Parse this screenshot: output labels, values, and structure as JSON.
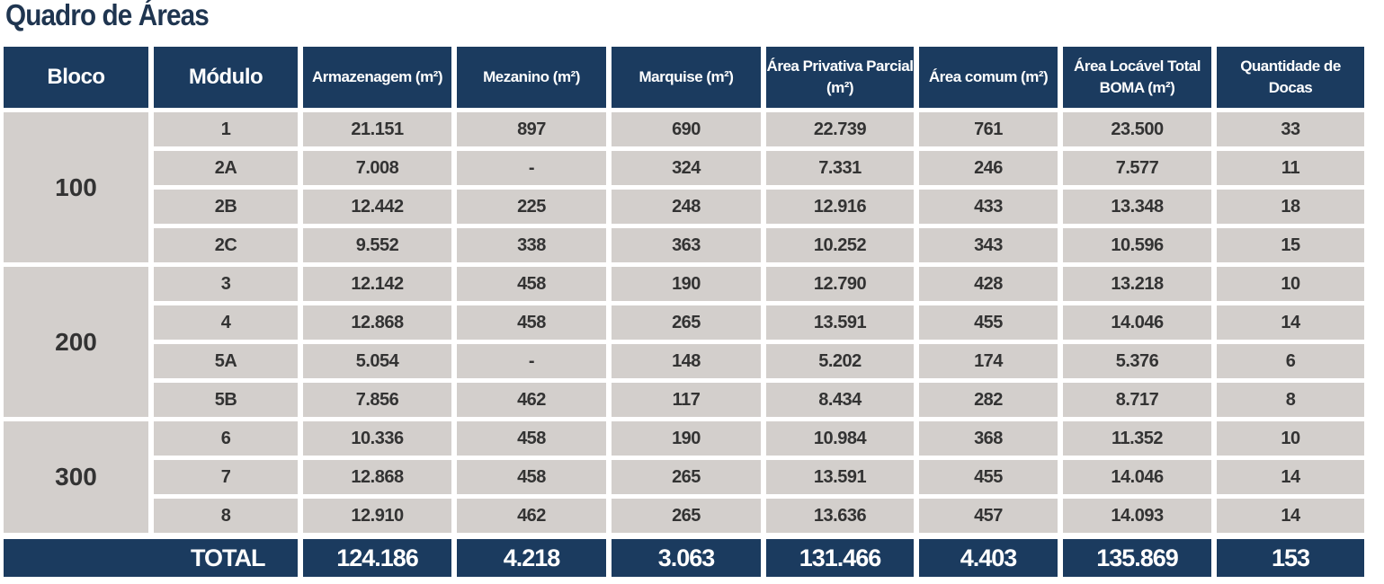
{
  "title": "Quadro de Áreas",
  "colors": {
    "header": "#1b3b5f",
    "cell": "#d3cfcc",
    "text": "#333333"
  },
  "headers": [
    "Bloco",
    "Módulo",
    "Armazenagem (m²)",
    "Mezanino (m²)",
    "Marquise (m²)",
    "Área Privativa Parcial (m²)",
    "Área comum (m²)",
    "Área Locável Total BOMA (m²)",
    "Quantidade de Docas"
  ],
  "blocks": [
    {
      "bloco": "100",
      "rows": [
        [
          "1",
          "21.151",
          "897",
          "690",
          "22.739",
          "761",
          "23.500",
          "33"
        ],
        [
          "2A",
          "7.008",
          "-",
          "324",
          "7.331",
          "246",
          "7.577",
          "11"
        ],
        [
          "2B",
          "12.442",
          "225",
          "248",
          "12.916",
          "433",
          "13.348",
          "18"
        ],
        [
          "2C",
          "9.552",
          "338",
          "363",
          "10.252",
          "343",
          "10.596",
          "15"
        ]
      ]
    },
    {
      "bloco": "200",
      "rows": [
        [
          "3",
          "12.142",
          "458",
          "190",
          "12.790",
          "428",
          "13.218",
          "10"
        ],
        [
          "4",
          "12.868",
          "458",
          "265",
          "13.591",
          "455",
          "14.046",
          "14"
        ],
        [
          "5A",
          "5.054",
          "-",
          "148",
          "5.202",
          "174",
          "5.376",
          "6"
        ],
        [
          "5B",
          "7.856",
          "462",
          "117",
          "8.434",
          "282",
          "8.717",
          "8"
        ]
      ]
    },
    {
      "bloco": "300",
      "rows": [
        [
          "6",
          "10.336",
          "458",
          "190",
          "10.984",
          "368",
          "11.352",
          "10"
        ],
        [
          "7",
          "12.868",
          "458",
          "265",
          "13.591",
          "455",
          "14.046",
          "14"
        ],
        [
          "8",
          "12.910",
          "462",
          "265",
          "13.636",
          "457",
          "14.093",
          "14"
        ]
      ]
    }
  ],
  "total": {
    "label": "TOTAL",
    "values": [
      "124.186",
      "4.218",
      "3.063",
      "131.466",
      "4.403",
      "135.869",
      "153"
    ]
  }
}
